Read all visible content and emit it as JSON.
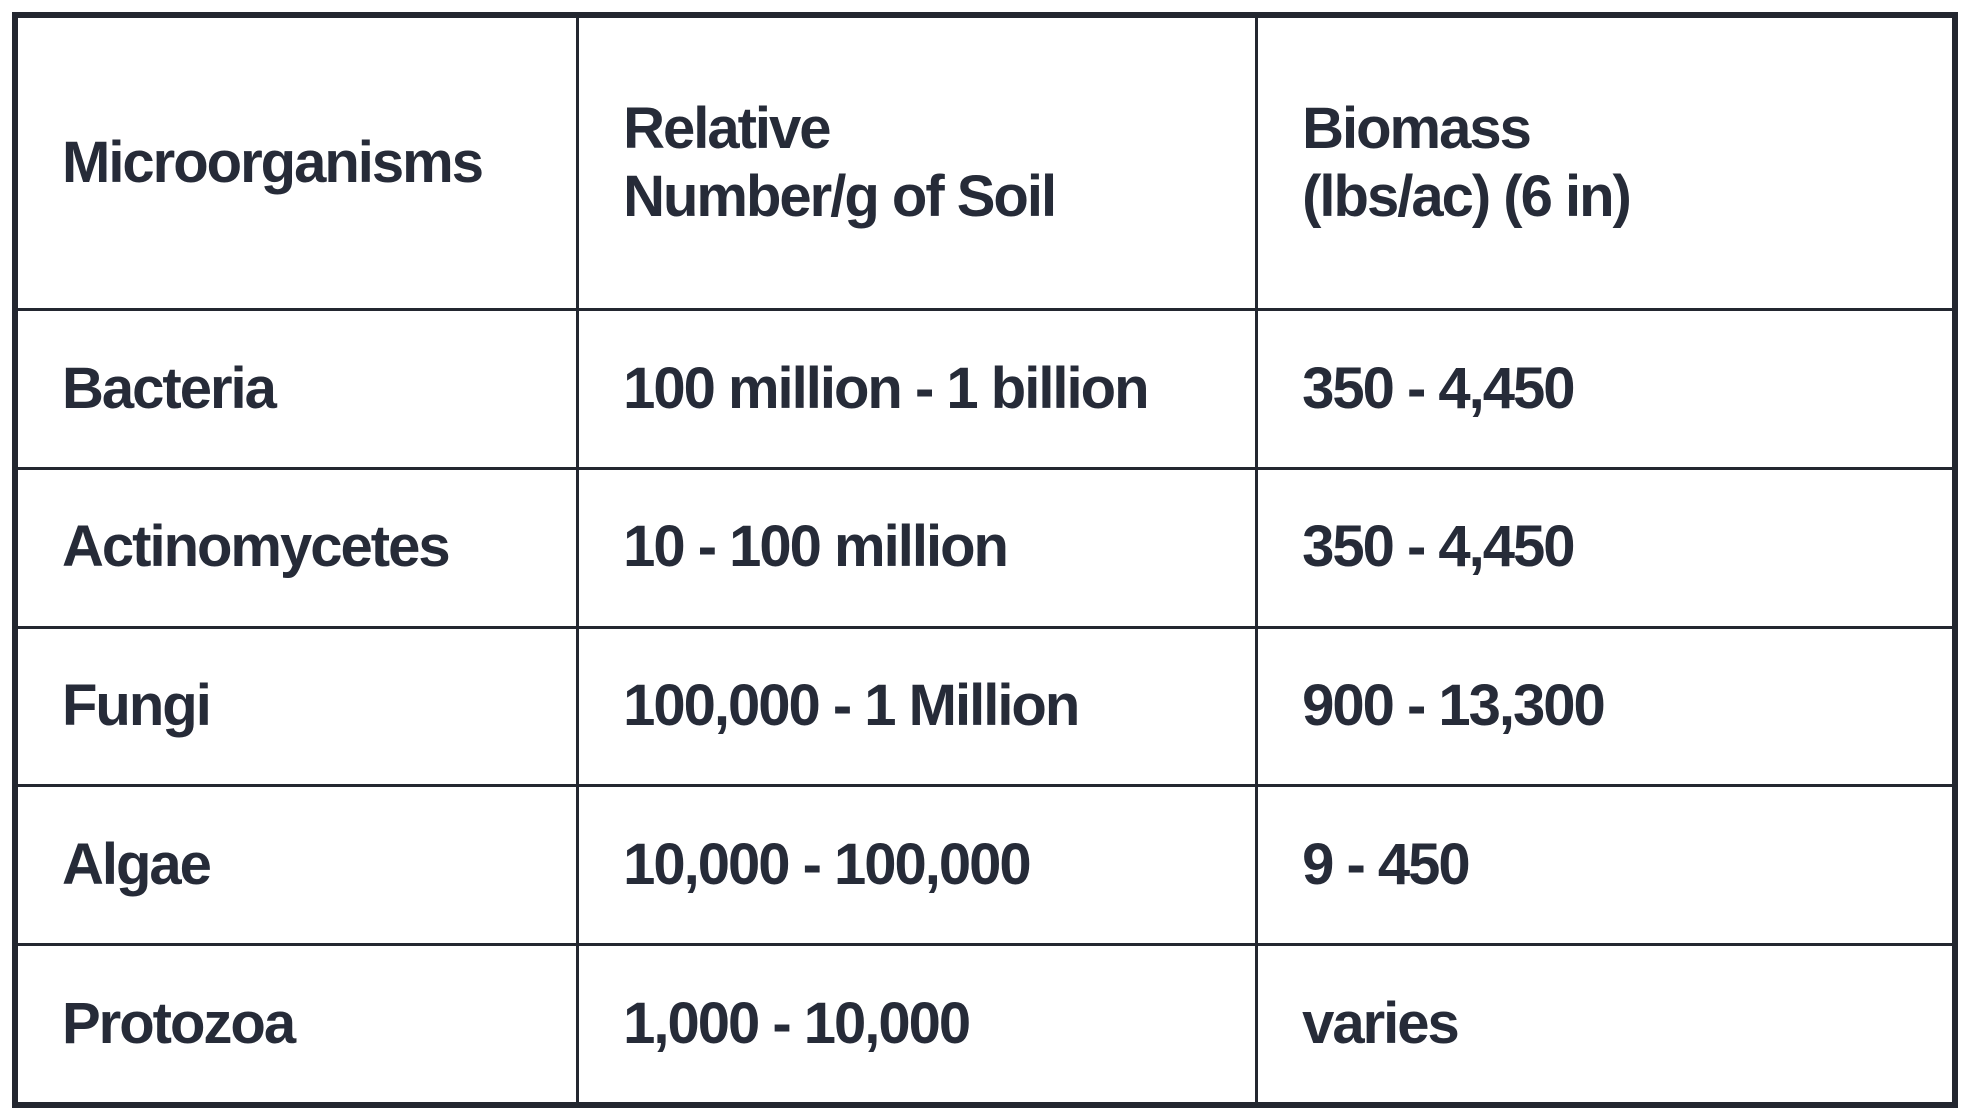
{
  "colors": {
    "text": "#262b38",
    "border": "#232730",
    "background": "#ffffff"
  },
  "header": {
    "col1": "Microorganisms",
    "col2_line1": "Relative",
    "col2_line2": "Number/g of Soil",
    "col3_line1": "Biomass",
    "col3_line2": "(lbs/ac) (6 in)"
  },
  "rows": [
    {
      "name": "Bacteria",
      "relative_number": "100 million - 1 billion",
      "biomass": "350 - 4,450"
    },
    {
      "name": "Actinomycetes",
      "relative_number": "10 - 100 million",
      "biomass": "350 - 4,450"
    },
    {
      "name": "Fungi",
      "relative_number": "100,000 - 1 Million",
      "biomass": "900 - 13,300"
    },
    {
      "name": "Algae",
      "relative_number": "10,000 - 100,000",
      "biomass": "9 - 450"
    },
    {
      "name": "Protozoa",
      "relative_number": "1,000 - 10,000",
      "biomass": "varies"
    }
  ],
  "chart_data": {
    "type": "table",
    "title": "",
    "columns": [
      "Microorganisms",
      "Relative Number/g of Soil",
      "Biomass (lbs/ac) (6 in)"
    ],
    "rows": [
      [
        "Bacteria",
        "100 million - 1 billion",
        "350 - 4,450"
      ],
      [
        "Actinomycetes",
        "10 - 100 million",
        "350 - 4,450"
      ],
      [
        "Fungi",
        "100,000 - 1 Million",
        "900 - 13,300"
      ],
      [
        "Algae",
        "10,000 - 100,000",
        "9 - 450"
      ],
      [
        "Protozoa",
        "1,000 - 10,000",
        "varies"
      ]
    ]
  }
}
